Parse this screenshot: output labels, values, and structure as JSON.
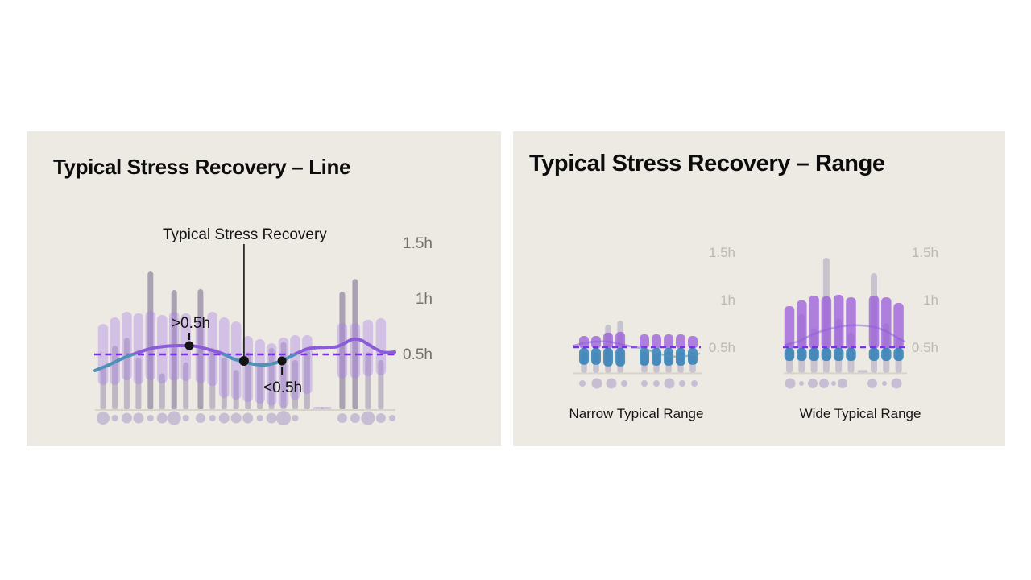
{
  "page": {
    "background": "#ffffff",
    "panel_background": "#edeae4"
  },
  "panels": {
    "line": {
      "title": "Typical Stress Recovery – Line"
    },
    "range": {
      "title": "Typical Stress Recovery – Range"
    }
  },
  "colors": {
    "title": "#0c0c0c",
    "range_bar": "rgba(170,130,230,0.40)",
    "stem": "rgba(128,112,150,0.42)",
    "stem_spike": "rgba(114,100,138,0.55)",
    "right_stem": "#c9c3d0",
    "range_purple": "rgba(151,86,217,0.72)",
    "range_blue": "rgba(42,125,180,0.82)",
    "dot": "#c7bed3",
    "baseline": "#d8d3cb",
    "threshold_dash": "#7a2fe6",
    "line_above": "#8a5cd8",
    "line_below": "#4e92b8",
    "annotation": "#141414",
    "axis_label_left": "#73716c",
    "axis_label_right": "#bdb9b1",
    "caption": "#161616"
  },
  "chart_data": [
    {
      "id": "line",
      "type": "area",
      "title": "Typical Stress Recovery – Line",
      "units": "hours",
      "ylim": [
        0,
        1.6
      ],
      "grid": false,
      "threshold": {
        "value": 0.5,
        "style": "dashed"
      },
      "y_ticks": [
        {
          "label": "1.5h",
          "value": 1.5
        },
        {
          "label": "1h",
          "value": 1.0
        },
        {
          "label": "0.5h",
          "value": 0.5
        }
      ],
      "bars": [
        {
          "t": 0.027,
          "top": 0.775,
          "bottom": 0.225
        },
        {
          "t": 0.066,
          "top": 0.833,
          "bottom": 0.225
        },
        {
          "t": 0.106,
          "top": 0.884,
          "bottom": 0.268
        },
        {
          "t": 0.145,
          "top": 0.87,
          "bottom": 0.232
        },
        {
          "t": 0.185,
          "top": 0.891,
          "bottom": 0.268
        },
        {
          "t": 0.224,
          "top": 0.855,
          "bottom": 0.239
        },
        {
          "t": 0.264,
          "top": 0.884,
          "bottom": 0.261
        },
        {
          "t": 0.303,
          "top": 0.87,
          "bottom": 0.261
        },
        {
          "t": 0.352,
          "top": 0.833,
          "bottom": 0.239
        },
        {
          "t": 0.392,
          "top": 0.884,
          "bottom": 0.217
        },
        {
          "t": 0.431,
          "top": 0.833,
          "bottom": 0.109
        },
        {
          "t": 0.471,
          "top": 0.797,
          "bottom": 0.094
        },
        {
          "t": 0.51,
          "top": 0.667,
          "bottom": 0.072
        },
        {
          "t": 0.55,
          "top": 0.638,
          "bottom": 0.058
        },
        {
          "t": 0.589,
          "top": 0.601,
          "bottom": 0.04
        },
        {
          "t": 0.629,
          "top": 0.652,
          "bottom": 0.022
        },
        {
          "t": 0.668,
          "top": 0.674,
          "bottom": 0.094
        },
        {
          "t": 0.708,
          "top": 0.674,
          "bottom": 0.145
        },
        {
          "t": 0.825,
          "top": 0.783,
          "bottom": 0.283
        },
        {
          "t": 0.868,
          "top": 0.783,
          "bottom": 0.283
        },
        {
          "t": 0.911,
          "top": 0.812,
          "bottom": 0.304
        },
        {
          "t": 0.954,
          "top": 0.826,
          "bottom": 0.312
        }
      ],
      "stems": [
        {
          "t": 0.027,
          "top": 0.4
        },
        {
          "t": 0.066,
          "top": 0.58
        },
        {
          "t": 0.106,
          "top": 0.65
        },
        {
          "t": 0.145,
          "top": 0.47
        },
        {
          "t": 0.185,
          "top": 1.246
        },
        {
          "t": 0.224,
          "top": 0.33
        },
        {
          "t": 0.264,
          "top": 1.08
        },
        {
          "t": 0.303,
          "top": 0.43
        },
        {
          "t": 0.352,
          "top": 1.087
        },
        {
          "t": 0.392,
          "top": 0.56
        },
        {
          "t": 0.431,
          "top": 0.47
        },
        {
          "t": 0.471,
          "top": 0.36
        },
        {
          "t": 0.51,
          "top": 0.52
        },
        {
          "t": 0.55,
          "top": 0.4
        },
        {
          "t": 0.589,
          "top": 0.56
        },
        {
          "t": 0.629,
          "top": 0.61
        },
        {
          "t": 0.668,
          "top": 0.45
        },
        {
          "t": 0.708,
          "top": 0.56
        },
        {
          "t": 0.825,
          "top": 1.065
        },
        {
          "t": 0.868,
          "top": 1.18
        },
        {
          "t": 0.911,
          "top": 0.52
        },
        {
          "t": 0.954,
          "top": 0.45
        }
      ],
      "flats": [
        0.745,
        0.772
      ],
      "line": [
        [
          0.0,
          0.355
        ],
        [
          0.046,
          0.406
        ],
        [
          0.091,
          0.464
        ],
        [
          0.14,
          0.514
        ],
        [
          0.194,
          0.558
        ],
        [
          0.247,
          0.576
        ],
        [
          0.301,
          0.58
        ],
        [
          0.341,
          0.572
        ],
        [
          0.382,
          0.543
        ],
        [
          0.422,
          0.51
        ],
        [
          0.462,
          0.46
        ],
        [
          0.497,
          0.435
        ],
        [
          0.53,
          0.413
        ],
        [
          0.565,
          0.406
        ],
        [
          0.597,
          0.42
        ],
        [
          0.629,
          0.449
        ],
        [
          0.656,
          0.486
        ],
        [
          0.683,
          0.522
        ],
        [
          0.71,
          0.551
        ],
        [
          0.745,
          0.562
        ],
        [
          0.78,
          0.565
        ],
        [
          0.806,
          0.569
        ],
        [
          0.833,
          0.601
        ],
        [
          0.86,
          0.638
        ],
        [
          0.887,
          0.63
        ],
        [
          0.914,
          0.587
        ],
        [
          0.941,
          0.543
        ],
        [
          0.965,
          0.518
        ],
        [
          1.0,
          0.522
        ]
      ],
      "dots": [
        [
          0.027,
          8
        ],
        [
          0.066,
          4
        ],
        [
          0.106,
          6.5
        ],
        [
          0.145,
          6.5
        ],
        [
          0.185,
          4
        ],
        [
          0.224,
          6.5
        ],
        [
          0.264,
          8.5
        ],
        [
          0.303,
          4
        ],
        [
          0.352,
          6
        ],
        [
          0.392,
          4
        ],
        [
          0.431,
          6.5
        ],
        [
          0.471,
          6.5
        ],
        [
          0.51,
          6.5
        ],
        [
          0.55,
          4
        ],
        [
          0.589,
          6.5
        ],
        [
          0.629,
          9
        ],
        [
          0.668,
          4
        ],
        [
          0.825,
          6
        ],
        [
          0.868,
          6
        ],
        [
          0.911,
          8.5
        ],
        [
          0.954,
          6
        ],
        [
          0.992,
          4
        ]
      ],
      "annotations": {
        "above_threshold": {
          "label": ">0.5h",
          "t": 0.3145,
          "value": 0.58
        },
        "typical": {
          "label": "Typical Stress Recovery",
          "t": 0.497,
          "value": 0.442
        },
        "below_threshold": {
          "label": "<0.5h",
          "t": 0.624,
          "value": 0.442
        }
      }
    },
    {
      "id": "narrow",
      "type": "bar",
      "title": "Narrow Typical Range",
      "caption": "Narrow Typical Range",
      "units": "hours",
      "ylim": [
        0.2,
        1.6
      ],
      "grid": false,
      "threshold": {
        "value": 0.5,
        "style": "dashed"
      },
      "y_ticks": [
        {
          "label": "1.5h",
          "value": 1.5
        },
        {
          "label": "1h",
          "value": 1.0
        },
        {
          "label": "0.5h",
          "value": 0.5
        }
      ],
      "bars": [
        {
          "t": 0.081,
          "top": 0.619,
          "blue_bottom": 0.315
        },
        {
          "t": 0.175,
          "top": 0.619,
          "blue_bottom": 0.315
        },
        {
          "t": 0.269,
          "top": 0.653,
          "blue_bottom": 0.298
        },
        {
          "t": 0.363,
          "top": 0.661,
          "blue_bottom": 0.298
        },
        {
          "t": 0.55,
          "top": 0.636,
          "blue_bottom": 0.306
        },
        {
          "t": 0.644,
          "top": 0.636,
          "blue_bottom": 0.306
        },
        {
          "t": 0.738,
          "top": 0.636,
          "blue_bottom": 0.306
        },
        {
          "t": 0.831,
          "top": 0.636,
          "blue_bottom": 0.306
        },
        {
          "t": 0.925,
          "top": 0.619,
          "blue_bottom": 0.315
        }
      ],
      "stems": [
        {
          "t": 0.081,
          "top": 0.45
        },
        {
          "t": 0.175,
          "top": 0.45
        },
        {
          "t": 0.269,
          "top": 0.737
        },
        {
          "t": 0.363,
          "top": 0.78
        },
        {
          "t": 0.55,
          "top": 0.45
        },
        {
          "t": 0.644,
          "top": 0.45
        },
        {
          "t": 0.738,
          "top": 0.45
        },
        {
          "t": 0.831,
          "top": 0.45
        },
        {
          "t": 0.925,
          "top": 0.45
        }
      ],
      "flats": [],
      "line": [
        [
          0.0,
          0.517
        ],
        [
          0.08,
          0.542
        ],
        [
          0.175,
          0.559
        ],
        [
          0.27,
          0.559
        ],
        [
          0.36,
          0.534
        ],
        [
          0.45,
          0.508
        ],
        [
          0.55,
          0.483
        ],
        [
          0.64,
          0.441
        ],
        [
          0.74,
          0.407
        ],
        [
          0.83,
          0.398
        ],
        [
          0.91,
          0.415
        ],
        [
          0.975,
          0.432
        ]
      ],
      "dots": [
        [
          0.069,
          4
        ],
        [
          0.181,
          6.5
        ],
        [
          0.294,
          6.5
        ],
        [
          0.394,
          4
        ],
        [
          0.55,
          4
        ],
        [
          0.644,
          4
        ],
        [
          0.744,
          6.5
        ],
        [
          0.844,
          4
        ],
        [
          0.938,
          4
        ]
      ]
    },
    {
      "id": "wide",
      "type": "bar",
      "title": "Wide Typical Range",
      "caption": "Wide Typical Range",
      "units": "hours",
      "ylim": [
        0.2,
        1.6
      ],
      "grid": false,
      "threshold": {
        "value": 0.5,
        "style": "dashed"
      },
      "y_ticks": [
        {
          "label": "1.5h",
          "value": 1.5
        },
        {
          "label": "1h",
          "value": 1.0
        },
        {
          "label": "0.5h",
          "value": 0.5
        }
      ],
      "bars": [
        {
          "t": 0.046,
          "top": 0.932,
          "blue_bottom": 0.356
        },
        {
          "t": 0.146,
          "top": 0.992,
          "blue_bottom": 0.356
        },
        {
          "t": 0.246,
          "top": 1.042,
          "blue_bottom": 0.356
        },
        {
          "t": 0.346,
          "top": 1.034,
          "blue_bottom": 0.356
        },
        {
          "t": 0.446,
          "top": 1.051,
          "blue_bottom": 0.356
        },
        {
          "t": 0.546,
          "top": 1.025,
          "blue_bottom": 0.356
        },
        {
          "t": 0.732,
          "top": 1.042,
          "blue_bottom": 0.356
        },
        {
          "t": 0.832,
          "top": 1.025,
          "blue_bottom": 0.356
        },
        {
          "t": 0.932,
          "top": 0.966,
          "blue_bottom": 0.356
        }
      ],
      "stems": [
        {
          "t": 0.046,
          "top": 0.55
        },
        {
          "t": 0.146,
          "top": 0.85
        },
        {
          "t": 0.246,
          "top": 0.7
        },
        {
          "t": 0.346,
          "top": 1.441
        },
        {
          "t": 0.446,
          "top": 0.8
        },
        {
          "t": 0.546,
          "top": 0.65
        },
        {
          "t": 0.732,
          "top": 1.28
        },
        {
          "t": 0.832,
          "top": 0.75
        },
        {
          "t": 0.932,
          "top": 0.6
        }
      ],
      "flats": [
        0.64
      ],
      "line": [
        [
          0.013,
          0.525
        ],
        [
          0.111,
          0.559
        ],
        [
          0.209,
          0.619
        ],
        [
          0.307,
          0.669
        ],
        [
          0.438,
          0.712
        ],
        [
          0.536,
          0.729
        ],
        [
          0.634,
          0.729
        ],
        [
          0.732,
          0.712
        ],
        [
          0.83,
          0.669
        ],
        [
          0.908,
          0.61
        ],
        [
          0.98,
          0.559
        ]
      ],
      "dots": [
        [
          0.052,
          6.5
        ],
        [
          0.144,
          3
        ],
        [
          0.235,
          6
        ],
        [
          0.327,
          6
        ],
        [
          0.405,
          3
        ],
        [
          0.477,
          6
        ],
        [
          0.719,
          6
        ],
        [
          0.817,
          3
        ],
        [
          0.915,
          6.5
        ]
      ]
    }
  ]
}
